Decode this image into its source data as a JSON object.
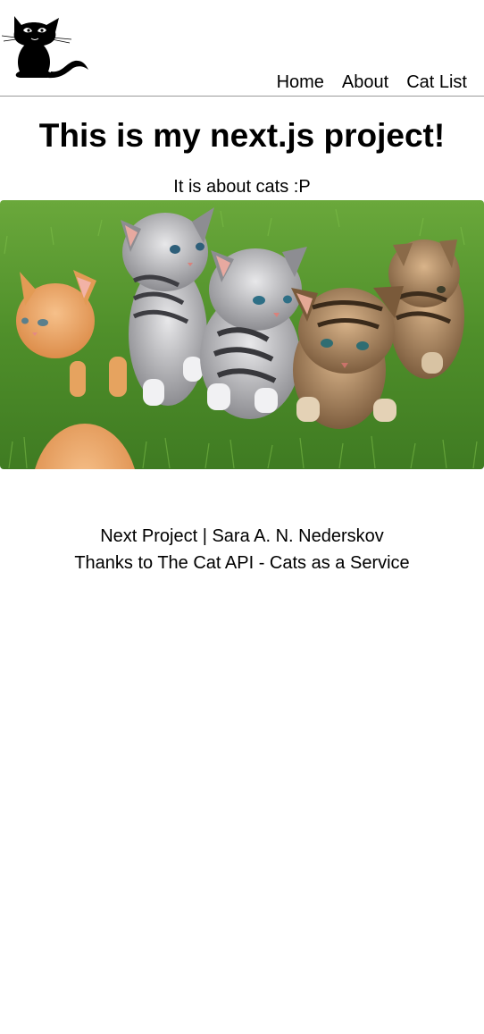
{
  "header": {
    "logo_icon": "black-cat-icon",
    "nav": [
      {
        "label": "Home"
      },
      {
        "label": "About"
      },
      {
        "label": "Cat List"
      }
    ]
  },
  "main": {
    "title": "This is my next.js project!",
    "subtitle": "It is about cats :P",
    "hero_image": "kittens-on-grass-photo"
  },
  "footer": {
    "line1": "Next Project | Sara A. N. Nederskov",
    "line2": "Thanks to The Cat API - Cats as a Service"
  },
  "colors": {
    "background": "#ffffff",
    "text": "#000000",
    "divider": "#9a9a9a",
    "grass": "#4f8f2a"
  }
}
